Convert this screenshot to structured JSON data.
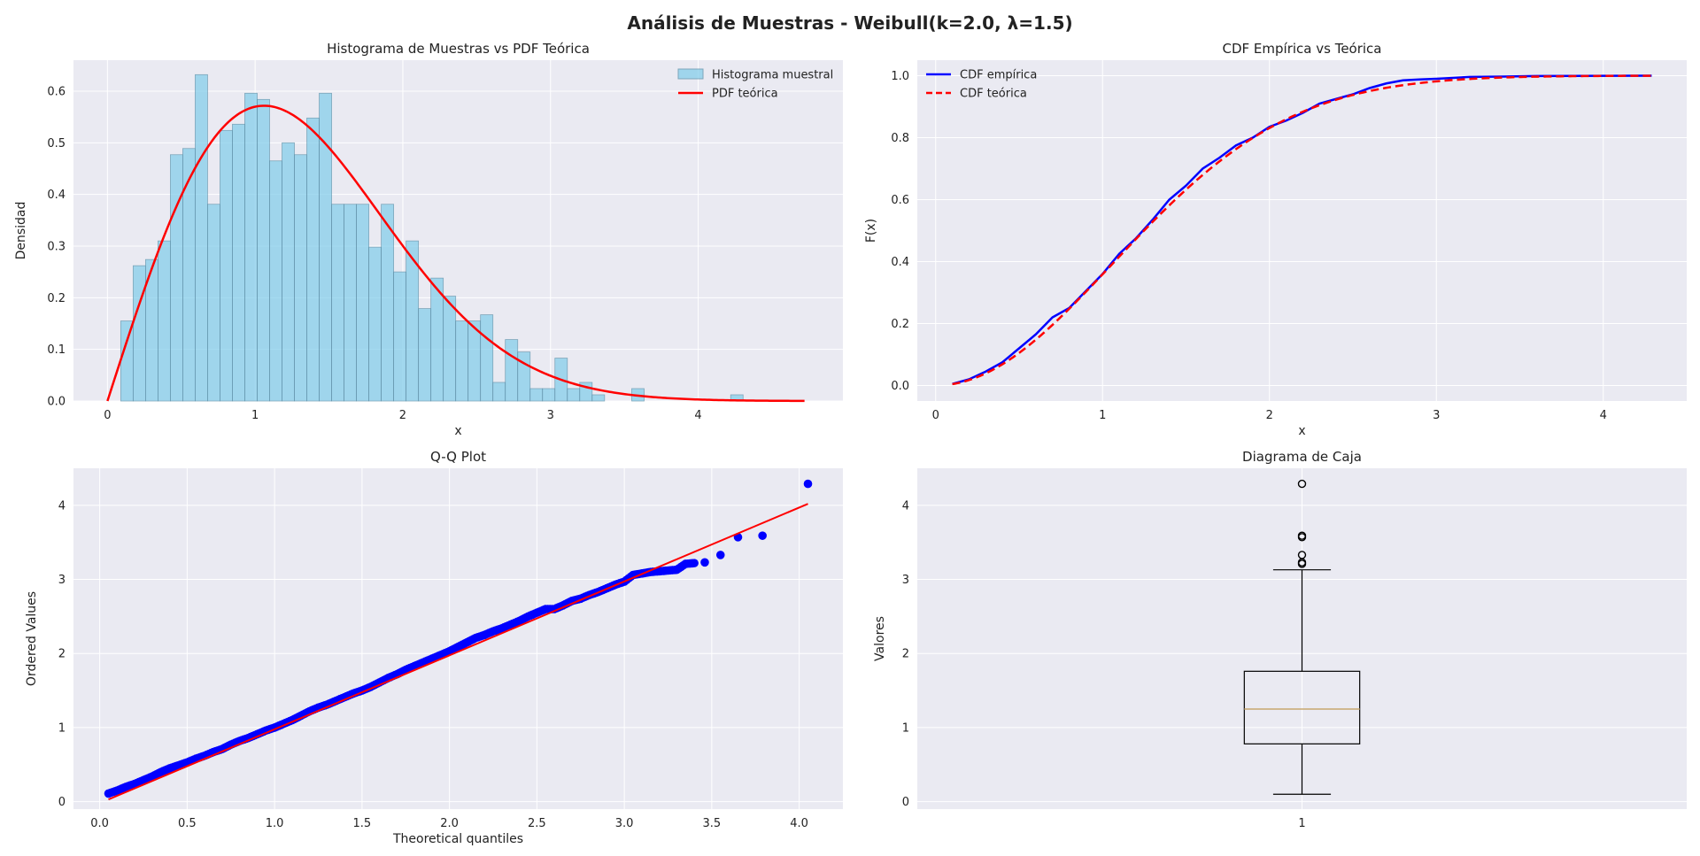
{
  "figure_title": "Análisis de Muestras - Weibull(k=2.0, λ=1.5)",
  "colors": {
    "panel_bg": "#eaeaf2",
    "grid": "#ffffff",
    "hist_fill": "#87ceeb",
    "hist_edge": "#5a8fa8",
    "pdf_line": "#ff0000",
    "cdf_empirical": "#0000ff",
    "cdf_theoretical": "#ff0000",
    "qq_points": "#0000ff",
    "qq_line": "#ff0000",
    "box_median": "#c8a870"
  },
  "chart_data": [
    {
      "type": "bar",
      "subtype": "histogram-with-line",
      "title": "Histograma de Muestras vs PDF Teórica",
      "xlabel": "x",
      "ylabel": "Densidad",
      "xlim": [
        -0.23,
        4.98
      ],
      "ylim": [
        0,
        0.66
      ],
      "xticks": [
        0,
        1,
        2,
        3,
        4
      ],
      "yticks": [
        0.0,
        0.1,
        0.2,
        0.3,
        0.4,
        0.5,
        0.6
      ],
      "ytick_labels": [
        "0.0",
        "0.1",
        "0.2",
        "0.3",
        "0.4",
        "0.5",
        "0.6"
      ],
      "legend_position": "top-right",
      "bin_start": 0.09,
      "bin_width": 0.084,
      "bin_values": [
        0.155,
        0.262,
        0.274,
        0.31,
        0.477,
        0.489,
        0.632,
        0.381,
        0.524,
        0.536,
        0.596,
        0.584,
        0.465,
        0.5,
        0.477,
        0.548,
        0.596,
        0.381,
        0.381,
        0.381,
        0.298,
        0.381,
        0.25,
        0.31,
        0.179,
        0.238,
        0.203,
        0.155,
        0.155,
        0.167,
        0.036,
        0.119,
        0.095,
        0.024,
        0.024,
        0.083,
        0.024,
        0.036,
        0.012,
        0.0,
        0.0,
        0.0,
        0.0,
        0.0,
        0.0,
        0.0,
        0.0,
        0.0,
        0.0,
        0.0,
        0.0,
        0.0,
        0.0,
        0.0,
        0.0,
        0.0,
        0.0,
        0.0,
        0.0,
        0.0,
        0.0
      ],
      "extra_bins": [
        {
          "x": 3.55,
          "value": 0.024
        },
        {
          "x": 4.22,
          "value": 0.012
        }
      ],
      "series": [
        {
          "name": "Histograma muestral",
          "kind": "histogram"
        },
        {
          "name": "PDF teórica",
          "kind": "line",
          "distribution": "weibull",
          "k": 2.0,
          "lambda": 1.5,
          "x_range": [
            0,
            4.72
          ]
        }
      ]
    },
    {
      "type": "line",
      "title": "CDF Empírica vs Teórica",
      "xlabel": "x",
      "ylabel": "F(x)",
      "xlim": [
        -0.11,
        4.5
      ],
      "ylim": [
        -0.05,
        1.05
      ],
      "xticks": [
        0,
        1,
        2,
        3,
        4
      ],
      "yticks": [
        0.0,
        0.2,
        0.4,
        0.6,
        0.8,
        1.0
      ],
      "ytick_labels": [
        "0.0",
        "0.2",
        "0.4",
        "0.6",
        "0.8",
        "1.0"
      ],
      "legend_position": "top-left",
      "series": [
        {
          "name": "CDF empírica",
          "style": "solid",
          "x": [
            0.1,
            0.2,
            0.3,
            0.4,
            0.5,
            0.6,
            0.7,
            0.8,
            0.9,
            1.0,
            1.1,
            1.2,
            1.3,
            1.4,
            1.5,
            1.6,
            1.7,
            1.8,
            1.9,
            2.0,
            2.1,
            2.2,
            2.3,
            2.4,
            2.5,
            2.6,
            2.7,
            2.8,
            2.9,
            3.0,
            3.1,
            3.2,
            3.4,
            3.6,
            4.29
          ],
          "y": [
            0.005,
            0.02,
            0.045,
            0.075,
            0.12,
            0.165,
            0.22,
            0.25,
            0.305,
            0.36,
            0.425,
            0.475,
            0.535,
            0.6,
            0.645,
            0.7,
            0.735,
            0.775,
            0.8,
            0.835,
            0.855,
            0.88,
            0.91,
            0.925,
            0.94,
            0.96,
            0.975,
            0.985,
            0.988,
            0.99,
            0.993,
            0.996,
            0.997,
            0.999,
            1.0
          ]
        },
        {
          "name": "CDF teórica",
          "style": "dashed",
          "distribution": "weibull",
          "k": 2.0,
          "lambda": 1.5,
          "x_range": [
            0.1,
            4.29
          ]
        }
      ]
    },
    {
      "type": "scatter",
      "title": "Q-Q Plot",
      "xlabel": "Theoretical quantiles",
      "ylabel": "Ordered Values",
      "xlim": [
        -0.15,
        4.25
      ],
      "ylim": [
        -0.1,
        4.5
      ],
      "xticks": [
        0.0,
        0.5,
        1.0,
        1.5,
        2.0,
        2.5,
        3.0,
        3.5,
        4.0
      ],
      "xtick_labels": [
        "0.0",
        "0.5",
        "1.0",
        "1.5",
        "2.0",
        "2.5",
        "3.0",
        "3.5",
        "4.0"
      ],
      "yticks": [
        0,
        1,
        2,
        3,
        4
      ],
      "points": {
        "x": [
          0.05,
          0.1,
          0.15,
          0.2,
          0.25,
          0.3,
          0.35,
          0.4,
          0.45,
          0.5,
          0.55,
          0.6,
          0.65,
          0.7,
          0.75,
          0.8,
          0.85,
          0.9,
          0.95,
          1.0,
          1.05,
          1.1,
          1.15,
          1.2,
          1.25,
          1.3,
          1.35,
          1.4,
          1.45,
          1.5,
          1.55,
          1.6,
          1.65,
          1.7,
          1.75,
          1.8,
          1.85,
          1.9,
          1.95,
          2.0,
          2.05,
          2.1,
          2.15,
          2.2,
          2.25,
          2.3,
          2.35,
          2.4,
          2.45,
          2.5,
          2.55,
          2.6,
          2.65,
          2.7,
          2.75,
          2.8,
          2.85,
          2.9,
          2.95,
          3.0,
          3.05,
          3.1,
          3.15,
          3.2,
          3.25,
          3.3,
          3.35,
          3.4,
          3.46,
          3.55,
          3.65,
          3.79,
          4.05
        ],
        "y": [
          0.11,
          0.15,
          0.2,
          0.24,
          0.29,
          0.34,
          0.4,
          0.45,
          0.49,
          0.53,
          0.58,
          0.62,
          0.67,
          0.71,
          0.77,
          0.82,
          0.86,
          0.91,
          0.96,
          1.0,
          1.05,
          1.1,
          1.16,
          1.22,
          1.27,
          1.31,
          1.36,
          1.41,
          1.46,
          1.5,
          1.55,
          1.61,
          1.67,
          1.72,
          1.78,
          1.83,
          1.88,
          1.93,
          1.98,
          2.03,
          2.09,
          2.15,
          2.21,
          2.25,
          2.3,
          2.34,
          2.39,
          2.44,
          2.5,
          2.55,
          2.6,
          2.6,
          2.65,
          2.71,
          2.74,
          2.79,
          2.83,
          2.88,
          2.93,
          2.97,
          3.06,
          3.08,
          3.1,
          3.11,
          3.12,
          3.13,
          3.21,
          3.22,
          3.23,
          3.33,
          3.57,
          3.59,
          4.29
        ]
      },
      "fit_line": {
        "x": [
          0.05,
          4.05
        ],
        "y": [
          0.03,
          4.02
        ]
      }
    },
    {
      "type": "box",
      "title": "Diagrama de Caja",
      "ylabel": "Valores",
      "categories": [
        "1"
      ],
      "ylim": [
        -0.1,
        4.5
      ],
      "yticks": [
        0,
        1,
        2,
        3,
        4
      ],
      "whisker_low": 0.1,
      "q1": 0.78,
      "median": 1.25,
      "q3": 1.76,
      "whisker_high": 3.13,
      "outliers": [
        3.21,
        3.23,
        3.33,
        3.57,
        3.59,
        4.29
      ]
    }
  ]
}
